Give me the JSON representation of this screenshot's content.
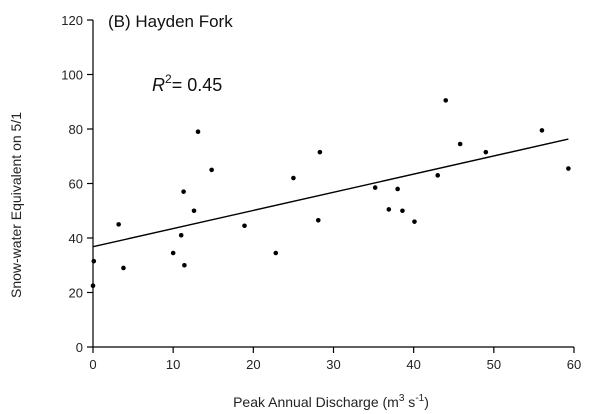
{
  "chart_data": {
    "type": "scatter",
    "title": "(B) Hayden Fork",
    "annotation": {
      "r_symbol": "R",
      "r_sup": "2",
      "r_rest": "= 0.45"
    },
    "xlabel": {
      "main": "Peak Annual Discharge (m",
      "sup1": "3",
      "mid": " s",
      "sup2": "-1",
      "end": ")"
    },
    "ylabel": "Snow-water Equivalent on 5/1",
    "xlim": [
      0,
      60
    ],
    "ylim": [
      0,
      120
    ],
    "xticks": [
      "0",
      "10",
      "20",
      "30",
      "40",
      "50",
      "60"
    ],
    "yticks": [
      "0",
      "20",
      "40",
      "60",
      "80",
      "100",
      "120"
    ],
    "grid": false,
    "trendline": {
      "x": [
        0,
        59.3
      ],
      "y": [
        36.8,
        76.3
      ]
    },
    "points": [
      {
        "x": 0.0,
        "y": 22.5
      },
      {
        "x": 0.1,
        "y": 31.5
      },
      {
        "x": 3.2,
        "y": 45.0
      },
      {
        "x": 3.8,
        "y": 29.0
      },
      {
        "x": 10.0,
        "y": 34.5
      },
      {
        "x": 11.0,
        "y": 41.0
      },
      {
        "x": 11.3,
        "y": 57.0
      },
      {
        "x": 11.4,
        "y": 30.0
      },
      {
        "x": 12.6,
        "y": 50.0
      },
      {
        "x": 13.1,
        "y": 79.0
      },
      {
        "x": 14.8,
        "y": 65.0
      },
      {
        "x": 18.9,
        "y": 44.5
      },
      {
        "x": 22.8,
        "y": 34.5
      },
      {
        "x": 25.0,
        "y": 62.0
      },
      {
        "x": 28.1,
        "y": 46.5
      },
      {
        "x": 28.3,
        "y": 71.5
      },
      {
        "x": 35.2,
        "y": 58.5
      },
      {
        "x": 36.9,
        "y": 50.5
      },
      {
        "x": 38.0,
        "y": 58.0
      },
      {
        "x": 38.6,
        "y": 50.0
      },
      {
        "x": 40.1,
        "y": 46.0
      },
      {
        "x": 43.0,
        "y": 63.0
      },
      {
        "x": 44.0,
        "y": 90.5
      },
      {
        "x": 45.8,
        "y": 74.5
      },
      {
        "x": 49.0,
        "y": 71.5
      },
      {
        "x": 56.0,
        "y": 79.5
      },
      {
        "x": 59.3,
        "y": 65.5
      }
    ]
  }
}
